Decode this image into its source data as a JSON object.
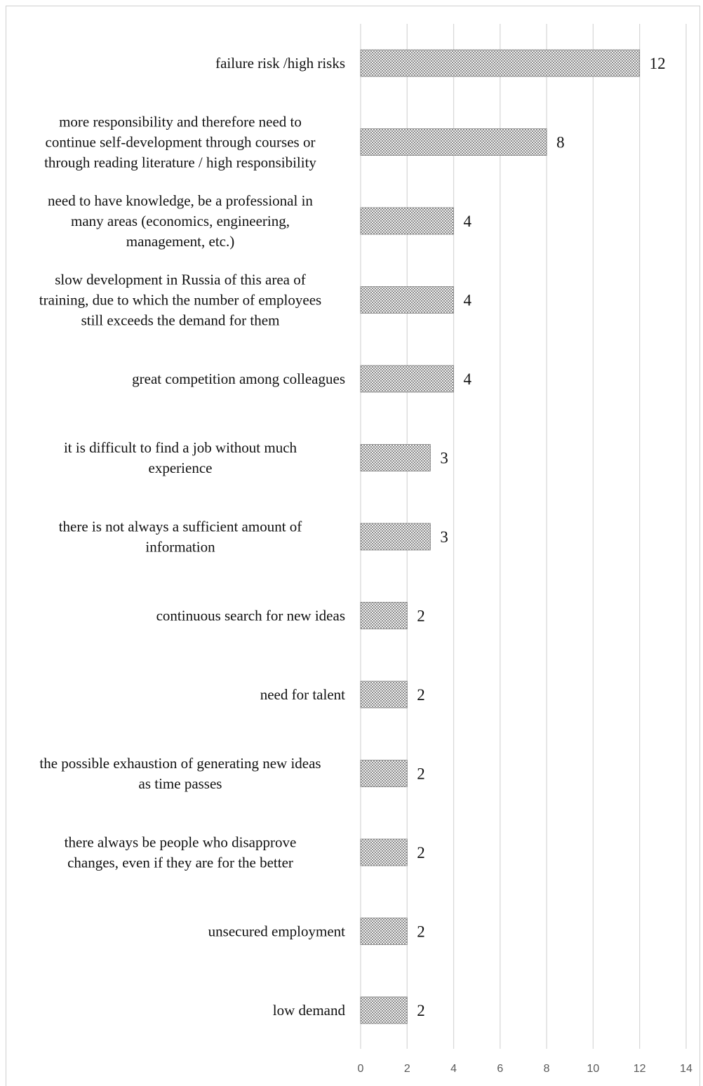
{
  "chart_data": {
    "type": "bar",
    "orientation": "horizontal",
    "categories": [
      "failure risk /high risks",
      "more responsibility and therefore need to continue self-development through courses or through reading literature / high responsibility",
      "need to have knowledge, be a professional in many areas (economics, engineering, management, etc.)",
      "slow development in Russia of this area of training, due to which the number of employees still exceeds the demand for them",
      "great competition among colleagues",
      "it is difficult to find a job without much experience",
      "there is not always a sufficient amount of information",
      "continuous search for new ideas",
      "need for talent",
      "the possible exhaustion of generating new ideas as time passes",
      "there always be people who disapprove changes, even if they are for the better",
      "unsecured employment",
      "low demand"
    ],
    "category_lines": [
      [
        "failure risk /high risks"
      ],
      [
        "more responsibility and therefore need to",
        "continue self-development through courses or",
        "through reading literature / high responsibility"
      ],
      [
        "need to have knowledge, be a professional in",
        "many areas (economics, engineering,",
        "management, etc.)"
      ],
      [
        "slow development in Russia of this area of",
        "training, due to which the number of employees",
        "still exceeds the demand for them"
      ],
      [
        "great competition among colleagues"
      ],
      [
        "it is difficult to find a job without much",
        "experience"
      ],
      [
        "there is not always a sufficient amount of",
        "information"
      ],
      [
        "continuous search for new ideas"
      ],
      [
        "need for talent"
      ],
      [
        "the possible exhaustion of generating new ideas",
        "as time passes"
      ],
      [
        "there always be people who disapprove",
        "changes, even if they are for the better"
      ],
      [
        "unsecured employment"
      ],
      [
        "low demand"
      ]
    ],
    "values": [
      12,
      8,
      4,
      4,
      4,
      3,
      3,
      2,
      2,
      2,
      2,
      2,
      2
    ],
    "xlim": [
      0,
      14
    ],
    "xticks": [
      0,
      2,
      4,
      6,
      8,
      10,
      12,
      14
    ],
    "title": "",
    "xlabel": "",
    "ylabel": "",
    "grid": "vertical",
    "legend": "none",
    "data_labels": true,
    "colors": {
      "bar_fill_light": "#f2f2f2",
      "bar_fill_dark": "#8c8c8c",
      "grid": "#d9d9d9",
      "tick_text": "#595959",
      "label_text": "#111111"
    }
  }
}
